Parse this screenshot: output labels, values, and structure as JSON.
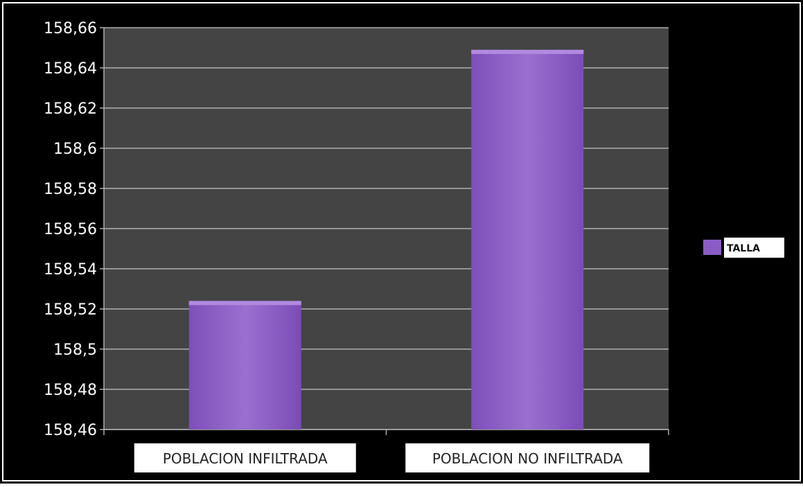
{
  "chart_data": {
    "type": "bar",
    "categories": [
      "POBLACION INFILTRADA",
      "POBLACION NO INFILTRADA"
    ],
    "series": [
      {
        "name": "TALLA",
        "values": [
          158.524,
          158.649
        ]
      }
    ],
    "ylim": [
      158.46,
      158.66
    ],
    "ytick_labels": [
      "158,46",
      "158,48",
      "158,5",
      "158,52",
      "158,54",
      "158,56",
      "158,58",
      "158,6",
      "158,62",
      "158,64",
      "158,66"
    ],
    "grid": true,
    "legend_position": "right",
    "colors": {
      "bar": "#8a5cc4",
      "bar_light": "#a07ad6",
      "bar_top": "#b18ae0",
      "plot_background": "#444444",
      "frame_background": "#000000",
      "gridline": "#b0b0b0",
      "tick_text": "#ffffff",
      "category_label_background": "#ffffff",
      "category_label_text": "#222222"
    }
  }
}
